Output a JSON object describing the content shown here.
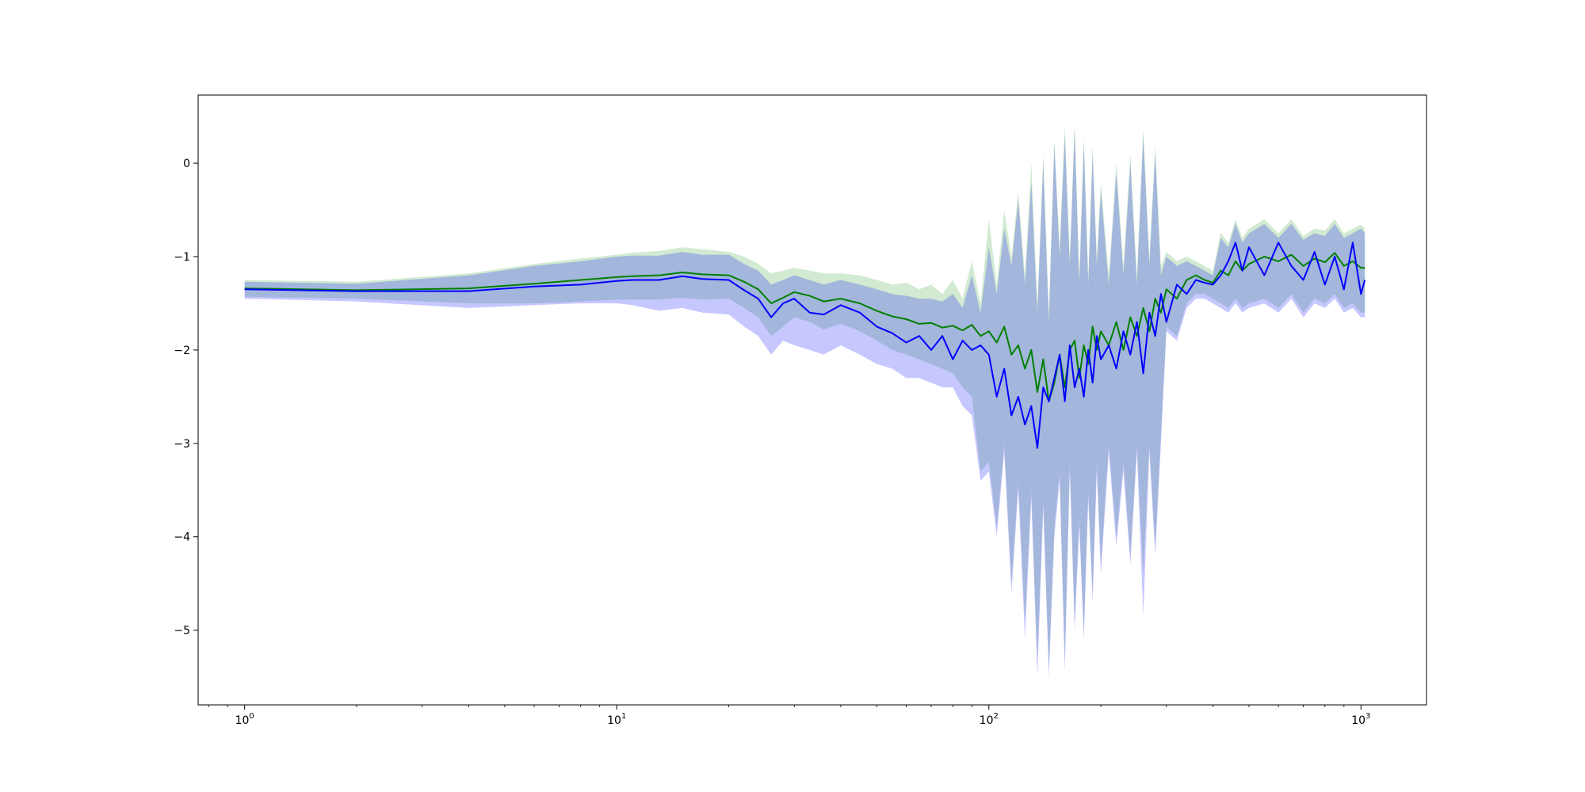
{
  "chart_data": {
    "type": "line",
    "title": "",
    "xlabel": "",
    "ylabel": "",
    "x_scale": "log",
    "xlim": [
      0.75,
      1500
    ],
    "ylim": [
      -5.8,
      0.73
    ],
    "grid": false,
    "legend": "none",
    "x_ticks": [
      {
        "value": 1,
        "mantissa": "10",
        "exp": "0"
      },
      {
        "value": 10,
        "mantissa": "10",
        "exp": "1"
      },
      {
        "value": 100,
        "mantissa": "10",
        "exp": "2"
      },
      {
        "value": 1000,
        "mantissa": "10",
        "exp": "3"
      }
    ],
    "y_ticks": [
      {
        "value": 0,
        "label": "0"
      },
      {
        "value": -1,
        "label": "−1"
      },
      {
        "value": -2,
        "label": "−2"
      },
      {
        "value": -3,
        "label": "−3"
      },
      {
        "value": -4,
        "label": "−4"
      },
      {
        "value": -5,
        "label": "−5"
      }
    ],
    "series": [
      {
        "color": "#008000",
        "band_color": "#2ca02c",
        "x": [
          1,
          2,
          4,
          6,
          8,
          10,
          11,
          13,
          15,
          17,
          20,
          22,
          24,
          26,
          28,
          30,
          33,
          36,
          40,
          45,
          50,
          55,
          60,
          65,
          70,
          75,
          80,
          85,
          90,
          95,
          100,
          105,
          110,
          115,
          120,
          125,
          130,
          135,
          140,
          145,
          150,
          155,
          160,
          165,
          170,
          175,
          180,
          185,
          190,
          195,
          200,
          210,
          220,
          230,
          240,
          250,
          260,
          270,
          280,
          290,
          300,
          320,
          340,
          360,
          380,
          400,
          420,
          440,
          460,
          480,
          500,
          550,
          600,
          650,
          700,
          750,
          800,
          850,
          900,
          950,
          1000,
          1024
        ],
        "y": [
          -1.34,
          -1.36,
          -1.34,
          -1.29,
          -1.25,
          -1.22,
          -1.21,
          -1.2,
          -1.17,
          -1.19,
          -1.2,
          -1.27,
          -1.35,
          -1.5,
          -1.44,
          -1.38,
          -1.42,
          -1.48,
          -1.45,
          -1.5,
          -1.58,
          -1.64,
          -1.67,
          -1.72,
          -1.71,
          -1.76,
          -1.74,
          -1.79,
          -1.73,
          -1.85,
          -1.8,
          -1.92,
          -1.75,
          -2.05,
          -1.95,
          -2.2,
          -2.0,
          -2.45,
          -2.1,
          -2.55,
          -2.35,
          -2.05,
          -2.4,
          -2.0,
          -1.9,
          -2.3,
          -1.95,
          -2.15,
          -1.75,
          -2.0,
          -1.8,
          -1.95,
          -1.7,
          -2.0,
          -1.65,
          -1.85,
          -1.55,
          -1.8,
          -1.45,
          -1.6,
          -1.35,
          -1.45,
          -1.25,
          -1.2,
          -1.25,
          -1.28,
          -1.15,
          -1.2,
          -1.05,
          -1.15,
          -1.08,
          -1.0,
          -1.05,
          -0.98,
          -1.1,
          -1.02,
          -1.06,
          -0.96,
          -1.1,
          -1.05,
          -1.12,
          -1.12
        ],
        "upper": [
          -1.25,
          -1.27,
          -1.18,
          -1.08,
          -1.02,
          -0.98,
          -0.96,
          -0.94,
          -0.9,
          -0.92,
          -0.95,
          -1.0,
          -1.08,
          -1.18,
          -1.15,
          -1.12,
          -1.15,
          -1.18,
          -1.18,
          -1.2,
          -1.25,
          -1.3,
          -1.28,
          -1.35,
          -1.3,
          -1.4,
          -1.25,
          -1.45,
          -1.05,
          -1.5,
          -0.6,
          -1.3,
          -0.5,
          -1.0,
          -0.3,
          -1.2,
          0.0,
          -1.5,
          0.1,
          -1.6,
          0.25,
          -0.9,
          0.42,
          -1.0,
          0.44,
          -1.2,
          0.3,
          -1.2,
          0.2,
          -1.0,
          -0.2,
          -1.2,
          0.0,
          -1.1,
          0.1,
          -1.2,
          0.38,
          -1.0,
          0.2,
          -1.1,
          -0.95,
          -1.05,
          -1.0,
          -1.05,
          -1.1,
          -1.15,
          -0.75,
          -0.85,
          -0.6,
          -0.8,
          -0.7,
          -0.6,
          -0.75,
          -0.6,
          -0.78,
          -0.7,
          -0.72,
          -0.6,
          -0.75,
          -0.7,
          -0.66,
          -0.7
        ],
        "lower": [
          -1.43,
          -1.45,
          -1.5,
          -1.5,
          -1.48,
          -1.46,
          -1.46,
          -1.46,
          -1.44,
          -1.46,
          -1.45,
          -1.55,
          -1.65,
          -1.85,
          -1.75,
          -1.65,
          -1.7,
          -1.78,
          -1.72,
          -1.8,
          -1.9,
          -2.0,
          -2.05,
          -2.1,
          -2.15,
          -2.2,
          -2.25,
          -2.4,
          -2.5,
          -3.3,
          -3.2,
          -3.9,
          -3.0,
          -4.5,
          -3.4,
          -4.9,
          -3.5,
          -5.3,
          -3.6,
          -5.4,
          -3.9,
          -3.3,
          -5.3,
          -3.2,
          -4.9,
          -3.8,
          -5.0,
          -3.5,
          -4.6,
          -3.2,
          -4.3,
          -3.0,
          -4.0,
          -3.2,
          -4.2,
          -3.0,
          -4.4,
          -3.0,
          -4.1,
          -2.9,
          -1.75,
          -1.85,
          -1.5,
          -1.4,
          -1.4,
          -1.45,
          -1.5,
          -1.55,
          -1.45,
          -1.55,
          -1.5,
          -1.45,
          -1.55,
          -1.4,
          -1.6,
          -1.45,
          -1.5,
          -1.4,
          -1.55,
          -1.5,
          -1.6,
          -1.6
        ]
      },
      {
        "color": "#0000ff",
        "band_color": "#0000ff",
        "x": [
          1,
          2,
          4,
          6,
          8,
          10,
          11,
          13,
          15,
          17,
          20,
          22,
          24,
          26,
          28,
          30,
          33,
          36,
          40,
          45,
          50,
          55,
          60,
          65,
          70,
          75,
          80,
          85,
          90,
          95,
          100,
          105,
          110,
          115,
          120,
          125,
          130,
          135,
          140,
          145,
          150,
          155,
          160,
          165,
          170,
          175,
          180,
          185,
          190,
          195,
          200,
          210,
          220,
          230,
          240,
          250,
          260,
          270,
          280,
          290,
          300,
          320,
          340,
          360,
          380,
          400,
          420,
          440,
          460,
          480,
          500,
          550,
          600,
          650,
          700,
          750,
          800,
          850,
          900,
          950,
          1000,
          1024
        ],
        "y": [
          -1.35,
          -1.37,
          -1.37,
          -1.32,
          -1.3,
          -1.26,
          -1.25,
          -1.25,
          -1.21,
          -1.24,
          -1.25,
          -1.36,
          -1.45,
          -1.65,
          -1.5,
          -1.45,
          -1.6,
          -1.62,
          -1.52,
          -1.6,
          -1.75,
          -1.82,
          -1.92,
          -1.85,
          -2.0,
          -1.85,
          -2.1,
          -1.9,
          -2.0,
          -1.95,
          -2.05,
          -2.5,
          -2.2,
          -2.7,
          -2.5,
          -2.8,
          -2.6,
          -3.05,
          -2.4,
          -2.55,
          -2.3,
          -2.05,
          -2.55,
          -1.95,
          -2.4,
          -2.2,
          -2.5,
          -2.0,
          -2.35,
          -1.85,
          -2.1,
          -1.95,
          -2.2,
          -1.8,
          -2.05,
          -1.7,
          -2.25,
          -1.6,
          -1.85,
          -1.4,
          -1.7,
          -1.3,
          -1.4,
          -1.25,
          -1.28,
          -1.3,
          -1.2,
          -1.05,
          -0.85,
          -1.15,
          -0.9,
          -1.2,
          -0.85,
          -1.1,
          -1.25,
          -0.95,
          -1.3,
          -1.0,
          -1.35,
          -0.85,
          -1.4,
          -1.25
        ],
        "upper": [
          -1.27,
          -1.29,
          -1.2,
          -1.1,
          -1.05,
          -1.0,
          -0.99,
          -0.99,
          -0.95,
          -0.98,
          -0.98,
          -1.08,
          -1.15,
          -1.3,
          -1.25,
          -1.2,
          -1.25,
          -1.3,
          -1.25,
          -1.3,
          -1.35,
          -1.4,
          -1.42,
          -1.45,
          -1.45,
          -1.48,
          -1.4,
          -1.55,
          -1.2,
          -1.6,
          -0.9,
          -1.4,
          -0.7,
          -1.1,
          -0.4,
          -1.3,
          -0.2,
          -1.6,
          0.0,
          -1.7,
          0.2,
          -1.0,
          0.3,
          -1.1,
          0.35,
          -1.3,
          0.2,
          -1.3,
          0.1,
          -1.1,
          -0.3,
          -1.3,
          -0.1,
          -1.2,
          0.0,
          -1.3,
          0.3,
          -1.1,
          0.1,
          -1.2,
          -1.0,
          -1.1,
          -1.05,
          -1.1,
          -1.15,
          -1.2,
          -0.8,
          -0.9,
          -0.65,
          -0.85,
          -0.75,
          -0.65,
          -0.8,
          -0.65,
          -0.82,
          -0.75,
          -0.78,
          -0.65,
          -0.8,
          -0.75,
          -0.7,
          -0.75
        ],
        "lower": [
          -1.45,
          -1.48,
          -1.55,
          -1.52,
          -1.5,
          -1.5,
          -1.52,
          -1.58,
          -1.55,
          -1.6,
          -1.62,
          -1.75,
          -1.85,
          -2.05,
          -1.9,
          -1.95,
          -2.0,
          -2.05,
          -1.95,
          -2.05,
          -2.15,
          -2.2,
          -2.3,
          -2.3,
          -2.35,
          -2.4,
          -2.4,
          -2.6,
          -2.7,
          -3.4,
          -3.3,
          -4.0,
          -3.1,
          -4.6,
          -3.5,
          -5.1,
          -3.6,
          -5.5,
          -3.7,
          -5.5,
          -4.0,
          -3.4,
          -5.45,
          -3.3,
          -5.0,
          -3.9,
          -5.1,
          -3.6,
          -4.7,
          -3.3,
          -4.4,
          -3.1,
          -4.1,
          -3.3,
          -4.3,
          -3.1,
          -4.85,
          -3.1,
          -4.2,
          -3.0,
          -1.8,
          -1.9,
          -1.55,
          -1.45,
          -1.45,
          -1.5,
          -1.55,
          -1.6,
          -1.5,
          -1.6,
          -1.55,
          -1.5,
          -1.6,
          -1.45,
          -1.65,
          -1.5,
          -1.55,
          -1.45,
          -1.6,
          -1.55,
          -1.65,
          -1.65
        ]
      }
    ]
  }
}
